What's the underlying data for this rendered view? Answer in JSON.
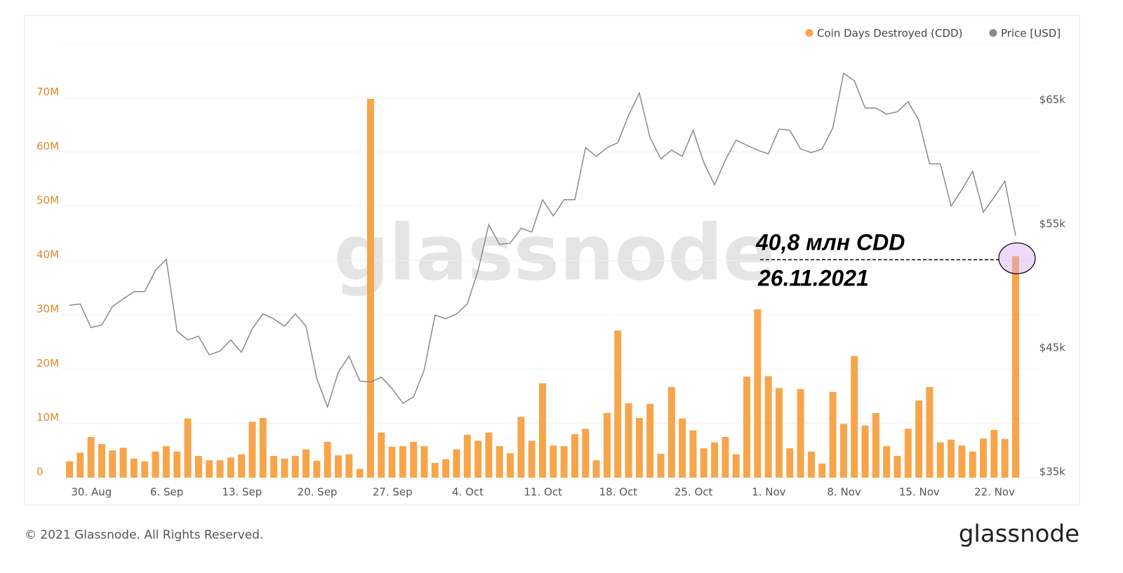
{
  "chart_data": {
    "type": "bar-line",
    "categories": [
      null,
      "30. Aug",
      null,
      null,
      null,
      null,
      null,
      null,
      "6. Sep",
      null,
      null,
      null,
      null,
      null,
      null,
      "13. Sep",
      null,
      null,
      null,
      null,
      null,
      null,
      "20. Sep",
      null,
      null,
      null,
      null,
      null,
      null,
      "27. Sep",
      null,
      null,
      null,
      null,
      null,
      null,
      "4. Oct",
      null,
      null,
      null,
      null,
      null,
      null,
      "11. Oct",
      null,
      null,
      null,
      null,
      null,
      null,
      "18. Oct",
      null,
      null,
      null,
      null,
      null,
      null,
      "25. Oct",
      null,
      null,
      null,
      null,
      null,
      null,
      "1. Nov",
      null,
      null,
      null,
      null,
      null,
      null,
      "8. Nov",
      null,
      null,
      null,
      null,
      null,
      null,
      "15. Nov",
      null,
      null,
      null,
      null,
      null,
      null,
      "22. Nov",
      null,
      null,
      null
    ],
    "series": [
      {
        "name": "Coin Days Destroyed (CDD)",
        "color": "#f7a54a",
        "axis": "y",
        "values": [
          3000000.0,
          4600000.0,
          7500000.0,
          6200000.0,
          5000000.0,
          5500000.0,
          3500000.0,
          3000000.0,
          4800000.0,
          5800000.0,
          4800000.0,
          10900000.0,
          4000000.0,
          3200000.0,
          3200000.0,
          3700000.0,
          4300000.0,
          10300000.0,
          11000000.0,
          4000000.0,
          3500000.0,
          4000000.0,
          5200000.0,
          3100000.0,
          6600000.0,
          4100000.0,
          4300000.0,
          1600000.0,
          69800000.0,
          8300000.0,
          5700000.0,
          5800000.0,
          6600000.0,
          5800000.0,
          2700000.0,
          3400000.0,
          5200000.0,
          7900000.0,
          6800000.0,
          8300000.0,
          5800000.0,
          4500000.0,
          11200000.0,
          6800000.0,
          17400000.0,
          5900000.0,
          5800000.0,
          8000000.0,
          9000000.0,
          3200000.0,
          11900000.0,
          27100000.0,
          13700000.0,
          11000000.0,
          13600000.0,
          4400000.0,
          16700000.0,
          10900000.0,
          8700000.0,
          5400000.0,
          6500000.0,
          7500000.0,
          4300000.0,
          18600000.0,
          31000000.0,
          18700000.0,
          16500000.0,
          5400000.0,
          16300000.0,
          4800000.0,
          2600000.0,
          15800000.0,
          9900000.0,
          22400000.0,
          9600000.0,
          11900000.0,
          5800000.0,
          4000000.0,
          9000000.0,
          14200000.0,
          16700000.0,
          6500000.0,
          7000000.0,
          5900000.0,
          4800000.0,
          7200000.0,
          8800000.0,
          7100000.0,
          40800000.0
        ]
      },
      {
        "name": "Price [USD]",
        "color": "#8a8a8a",
        "axis": "y2",
        "values": [
          48900,
          49000,
          47100,
          47300,
          48800,
          49400,
          50000,
          50000,
          51700,
          52600,
          46800,
          46100,
          46400,
          44900,
          45200,
          46100,
          45100,
          47000,
          48200,
          47800,
          47200,
          48200,
          47200,
          43000,
          40700,
          43500,
          44800,
          42800,
          42700,
          43100,
          42200,
          41000,
          41500,
          43700,
          48100,
          47800,
          48200,
          49000,
          51700,
          55400,
          53800,
          53900,
          55100,
          54800,
          57400,
          56100,
          57400,
          57400,
          61600,
          60900,
          61600,
          62000,
          64200,
          66000,
          62400,
          60700,
          61400,
          60900,
          63000,
          60400,
          58600,
          60600,
          62200,
          61800,
          61400,
          61100,
          63100,
          63000,
          61500,
          61200,
          61500,
          63200,
          67600,
          67000,
          64800,
          64800,
          64300,
          64500,
          65300,
          63800,
          60300,
          60300,
          56900,
          58200,
          59700,
          56400,
          57600,
          58900,
          54500
        ]
      }
    ],
    "ylim": [
      0,
      80000000
    ],
    "yticks": [
      {
        "value": 0,
        "label": "0"
      },
      {
        "value": 10000000,
        "label": "10M"
      },
      {
        "value": 20000000,
        "label": "20M"
      },
      {
        "value": 30000000,
        "label": "30M"
      },
      {
        "value": 40000000,
        "label": "40M"
      },
      {
        "value": 50000000,
        "label": "50M"
      },
      {
        "value": 60000000,
        "label": "60M"
      },
      {
        "value": 70000000,
        "label": "70M"
      }
    ],
    "y2lim": [
      35000,
      70000
    ],
    "y2ticks": [
      {
        "value": 35000,
        "label": "$35k"
      },
      {
        "value": 45000,
        "label": "$45k"
      },
      {
        "value": 55000,
        "label": "$55k"
      },
      {
        "value": 65000,
        "label": "$65k"
      }
    ],
    "grid": true,
    "legend": "top-right",
    "watermark": "glassnode",
    "annotations": [
      "40,8 млн CDD",
      "26.11.2021"
    ],
    "footer": "© 2021 Glassnode. All Rights Reserved.",
    "logo": "glassnode"
  }
}
